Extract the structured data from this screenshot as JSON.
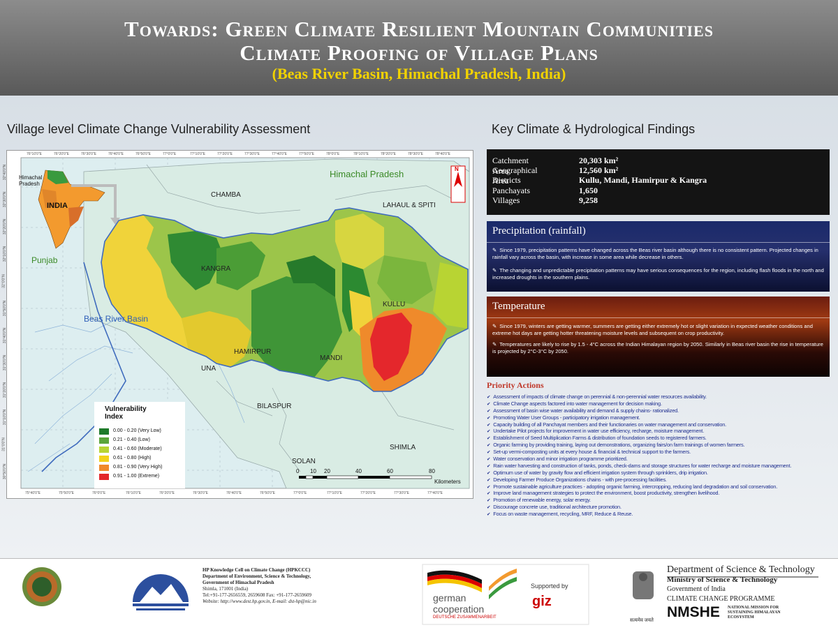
{
  "header": {
    "line1": "Towards: Green Climate Resilient Mountain Communities",
    "line2": "Climate Proofing of Village Plans",
    "line3": "(Beas River Basin, Himachal Pradesh, India)"
  },
  "left_title": "Village level Climate Change Vulnerability Assessment",
  "right_title": "Key Climate  & Hydrological Findings",
  "map": {
    "top_ticks": [
      "76°10'0\"E",
      "76°20'0\"E",
      "76°30'0\"E",
      "76°40'0\"E",
      "76°50'0\"E",
      "77°0'0\"E",
      "77°10'0\"E",
      "77°20'0\"E",
      "77°30'0\"E",
      "77°40'0\"E",
      "77°50'0\"E",
      "78°0'0\"E",
      "78°10'0\"E",
      "78°20'0\"E",
      "78°30'0\"E",
      "78°40'0\"E"
    ],
    "bottom_ticks": [
      "75°40'0\"E",
      "75°50'0\"E",
      "76°0'0\"E",
      "76°10'0\"E",
      "76°20'0\"E",
      "76°30'0\"E",
      "76°40'0\"E",
      "76°50'0\"E",
      "77°0'0\"E",
      "77°10'0\"E",
      "77°20'0\"E",
      "77°30'0\"E",
      "77°40'0\"E"
    ],
    "left_ticks": [
      "32°40'0\"N",
      "32°30'0\"N",
      "32°20'0\"N",
      "32°10'0\"N",
      "32°0'0\"N",
      "31°50'0\"N",
      "31°40'0\"N",
      "31°30'0\"N",
      "31°20'0\"N",
      "31°10'0\"N",
      "31°0'0\"N",
      "30°50'0\"N"
    ],
    "labels": {
      "himachal": "Himachal Pradesh",
      "chamba": "CHAMBA",
      "lahaul": "LAHAUL & SPITI",
      "kangra": "KANGRA",
      "kullu": "KULLU",
      "hamirpur": "HAMIRPUR",
      "mandi": "MANDI",
      "una": "UNA",
      "bilaspur": "BILASPUR",
      "solan": "SOLAN",
      "shimla": "SHIMLA",
      "punjab": "Punjab",
      "beas": "Beas River Basin",
      "india": "INDIA",
      "inset_hp": "Himachal Pradesh",
      "north": "N"
    },
    "legend": {
      "title": "Vulnerability Index",
      "items": [
        {
          "label": "0.00 - 0.20 (Very Low)",
          "color": "#1e7a2a"
        },
        {
          "label": "0.21 - 0.40 (Low)",
          "color": "#5aa53a"
        },
        {
          "label": "0.41 - 0.60 (Moderate)",
          "color": "#b8d433"
        },
        {
          "label": "0.61 - 0.80 (High)",
          "color": "#f3d21a"
        },
        {
          "label": "0.81 - 0.90 (Very High)",
          "color": "#f0892a"
        },
        {
          "label": "0.91 - 1.00 (Extreme)",
          "color": "#e3262b"
        }
      ]
    },
    "scale": {
      "ticks": [
        "0",
        "10",
        "20",
        "40",
        "60",
        "80"
      ],
      "unit": "Kilometers"
    }
  },
  "findings": [
    {
      "label": "Catchment Area",
      "value": "20,303 km²"
    },
    {
      "label": "Geographical Area",
      "value": "12,560 km²"
    },
    {
      "label": "Districts",
      "value": "Kullu, Mandi, Hamirpur & Kangra"
    },
    {
      "label": "Panchayats",
      "value": "1,650"
    },
    {
      "label": "Villages",
      "value": "9,258"
    }
  ],
  "precipitation": {
    "title": "Precipitation (rainfall)",
    "bullets": [
      "Since 1979, precipitation patterns have changed across the Beas river basin although there is no consistent pattern. Projected changes in rainfall vary across the basin, with increase in some area while decrease in others.",
      "The changing and unpredictable precipitation patterns may have serious consequences for the region, including flash floods in the north and increased droughts in the southern plains."
    ]
  },
  "temperature": {
    "title": "Temperature",
    "bullets": [
      "Since 1979, winters are getting warmer, summers are getting either extremely hot or slight variation in expected weather conditions and extreme hot days are getting hotter threatening moisture levels and subsequent on crop productivity.",
      "Temperatures are likely to rise by 1.5 - 4°C across the Indian Himalayan region by 2050. Similarly in  Beas river basin the rise in temperature is projected by 2°C-3°C by 2050."
    ]
  },
  "priority": {
    "title": "Priority Actions",
    "items": [
      "Assessment of impacts of climate change on perennial & non-perennial water resources availability.",
      "Climate Change aspects factored into water management for decision making.",
      "Assessment of basin wise water availability and demand & supply chains- rationalized.",
      "Promoting Water User Groups - participatory irrigation management.",
      "Capacity building of all Panchayat members and their functionaries on water management and conservation.",
      "Undertake Pilot projects for improvement in water use efficiency, recharge, moisture management.",
      "Establishment of Seed Multiplication Farms & distribution of foundation seeds to registered farmers.",
      "Organic farming by providing training, laying out demonstrations, organizing fairs/on farm trainings of women farmers.",
      "Set-up vermi-composting units at every house & financial & technical support to the farmers.",
      "Water conservation and minor irrigation programme prioritized.",
      "Rain water harvesting and construction of tanks, ponds, check-dams and storage structures for water recharge and moisture management.",
      "Optimum use of water by gravity flow and efficient irrigation system through sprinklers, drip irrigation.",
      "Developing Farmer Produce Organizations chains - with pre-processing facilities.",
      "Promote sustainable agriculture practices - adopting organic farming, intercropping, reducing land degradation and soil conservation.",
      "Improve land management strategies to protect the environment, boost productivity, strengthen livelihood.",
      "Promotion of renewable energy, solar energy.",
      "Discourage concrete use, traditional architecture promotion.",
      "Focus on waste management, recycling, MRF, Reduce & Reuse."
    ]
  },
  "footer": {
    "hpkccc": [
      "HP Knowledge Cell on Climate Change (HPKCCC)",
      "Department of Environment, Science & Technology,",
      "Government of Himachal Pradesh",
      "Shimla, 171001  (India)",
      "Tel:+91-177-2656559, 2659608 Fax: +91-177-2659609",
      "Website: http://www.dest.hp.gov.in, E-mail: dst-hp@nic.in"
    ],
    "german": "german",
    "cooperation": "cooperation",
    "deutsche": "DEUTSCHE ZUSAMMENARBEIT",
    "supported": "Supported by",
    "giz": "giz",
    "dst": "Department of Science & Technology",
    "ministry": "Ministry of Science & Technology",
    "goi": "Government of India",
    "ccp": "CLIMATE CHANGE PROGRAMME",
    "nmshe": "NMSHE",
    "nmshe_full": "NATIONAL MISSION FOR SUSTAINING HIMALAYAN ECOSYSTEM",
    "satyameva": "सत्यमेव जयते"
  }
}
